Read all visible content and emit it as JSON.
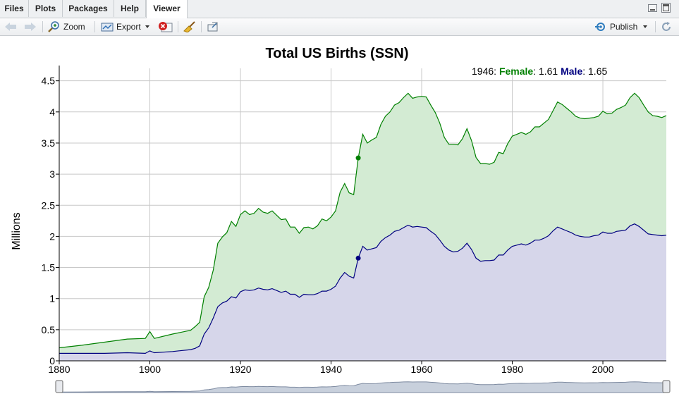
{
  "tabs": [
    {
      "label": "Files"
    },
    {
      "label": "Plots"
    },
    {
      "label": "Packages"
    },
    {
      "label": "Help"
    },
    {
      "label": "Viewer"
    }
  ],
  "toolbar": {
    "zoom_label": "Zoom",
    "export_label": "Export",
    "publish_label": "Publish"
  },
  "legend": {
    "x_value": "1946",
    "female_label": "Female",
    "female_value": "1.61",
    "male_label": "Male",
    "male_value": "1.65"
  },
  "colors": {
    "female_line": "#008000",
    "female_fill": "#d3ebd3",
    "male_line": "#000080",
    "male_fill": "#d6d6ea"
  },
  "chart_data": {
    "type": "area",
    "title": "Total US Births (SSN)",
    "xlabel": "",
    "ylabel": "Millions",
    "stacked": true,
    "xlim": [
      1880,
      2014
    ],
    "ylim": [
      0,
      4.7
    ],
    "x_ticks": [
      "1880",
      "1900",
      "1920",
      "1940",
      "1960",
      "1980",
      "2000"
    ],
    "y_ticks": [
      "0",
      "0.5",
      "1",
      "1.5",
      "2",
      "2.5",
      "3",
      "3.5",
      "4",
      "4.5"
    ],
    "grid": true,
    "highlight_x": 1946,
    "x": [
      1880,
      1885,
      1890,
      1895,
      1899,
      1900,
      1901,
      1905,
      1909,
      1910,
      1911,
      1912,
      1913,
      1914,
      1915,
      1916,
      1917,
      1918,
      1919,
      1920,
      1921,
      1922,
      1923,
      1924,
      1925,
      1926,
      1927,
      1928,
      1929,
      1930,
      1931,
      1932,
      1933,
      1934,
      1935,
      1936,
      1937,
      1938,
      1939,
      1940,
      1941,
      1942,
      1943,
      1944,
      1945,
      1946,
      1947,
      1948,
      1949,
      1950,
      1951,
      1952,
      1953,
      1954,
      1955,
      1956,
      1957,
      1958,
      1959,
      1960,
      1961,
      1962,
      1963,
      1964,
      1965,
      1966,
      1967,
      1968,
      1969,
      1970,
      1971,
      1972,
      1973,
      1974,
      1975,
      1976,
      1977,
      1978,
      1979,
      1980,
      1981,
      1982,
      1983,
      1984,
      1985,
      1986,
      1987,
      1988,
      1989,
      1990,
      1991,
      1992,
      1993,
      1994,
      1995,
      1996,
      1997,
      1998,
      1999,
      2000,
      2001,
      2002,
      2003,
      2004,
      2005,
      2006,
      2007,
      2008,
      2009,
      2010,
      2011,
      2012,
      2013,
      2014
    ],
    "series": [
      {
        "name": "Male",
        "values": [
          0.12,
          0.12,
          0.12,
          0.13,
          0.12,
          0.16,
          0.13,
          0.15,
          0.18,
          0.2,
          0.24,
          0.43,
          0.53,
          0.69,
          0.87,
          0.93,
          0.96,
          1.03,
          1.01,
          1.11,
          1.14,
          1.13,
          1.14,
          1.17,
          1.15,
          1.14,
          1.16,
          1.13,
          1.1,
          1.12,
          1.07,
          1.07,
          1.02,
          1.07,
          1.06,
          1.06,
          1.08,
          1.12,
          1.12,
          1.15,
          1.2,
          1.33,
          1.42,
          1.36,
          1.33,
          1.65,
          1.84,
          1.78,
          1.8,
          1.82,
          1.92,
          1.98,
          2.02,
          2.08,
          2.1,
          2.14,
          2.18,
          2.15,
          2.16,
          2.15,
          2.14,
          2.08,
          2.03,
          1.94,
          1.84,
          1.78,
          1.75,
          1.76,
          1.81,
          1.89,
          1.79,
          1.65,
          1.6,
          1.61,
          1.61,
          1.62,
          1.7,
          1.7,
          1.78,
          1.84,
          1.86,
          1.88,
          1.86,
          1.89,
          1.94,
          1.94,
          1.97,
          2.01,
          2.09,
          2.15,
          2.12,
          2.09,
          2.06,
          2.02,
          2.0,
          1.99,
          1.99,
          2.01,
          2.02,
          2.07,
          2.05,
          2.05,
          2.08,
          2.09,
          2.1,
          2.17,
          2.2,
          2.16,
          2.1,
          2.04,
          2.03,
          2.02,
          2.01,
          2.02
        ]
      },
      {
        "name": "Female",
        "values": [
          0.09,
          0.13,
          0.18,
          0.22,
          0.24,
          0.31,
          0.23,
          0.28,
          0.31,
          0.35,
          0.38,
          0.6,
          0.65,
          0.77,
          1.02,
          1.06,
          1.1,
          1.21,
          1.15,
          1.24,
          1.27,
          1.22,
          1.23,
          1.28,
          1.24,
          1.23,
          1.25,
          1.21,
          1.17,
          1.16,
          1.08,
          1.08,
          1.03,
          1.07,
          1.09,
          1.06,
          1.09,
          1.16,
          1.13,
          1.16,
          1.21,
          1.38,
          1.43,
          1.34,
          1.34,
          1.61,
          1.8,
          1.72,
          1.75,
          1.77,
          1.88,
          1.95,
          1.98,
          2.03,
          2.05,
          2.09,
          2.12,
          2.07,
          2.08,
          2.1,
          2.1,
          2.03,
          1.96,
          1.88,
          1.75,
          1.7,
          1.73,
          1.71,
          1.76,
          1.84,
          1.75,
          1.62,
          1.57,
          1.56,
          1.55,
          1.57,
          1.65,
          1.63,
          1.71,
          1.77,
          1.78,
          1.79,
          1.78,
          1.79,
          1.82,
          1.82,
          1.85,
          1.87,
          1.93,
          2.01,
          2.0,
          1.97,
          1.94,
          1.91,
          1.9,
          1.9,
          1.91,
          1.9,
          1.91,
          1.94,
          1.92,
          1.93,
          1.96,
          1.98,
          2.01,
          2.06,
          2.1,
          2.07,
          2.01,
          1.96,
          1.91,
          1.91,
          1.9,
          1.92
        ]
      }
    ]
  }
}
